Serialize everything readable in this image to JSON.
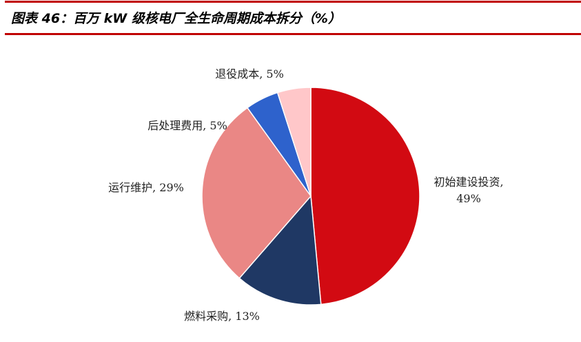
{
  "title": "图表 46：百万 kW 级核电厂全生命周期成本拆分（%）",
  "chart_data": {
    "type": "pie",
    "title": "图表 46：百万 kW 级核电厂全生命周期成本拆分（%）",
    "start": "top",
    "direction": "clockwise",
    "slices": [
      {
        "label": "初始建设投资",
        "value": 49,
        "text": [
          "初始建设投资,",
          "49%"
        ],
        "color": "#D20A12"
      },
      {
        "label": "燃料采购",
        "value": 13,
        "text": [
          "燃料采购, 13%"
        ],
        "color": "#1F3864"
      },
      {
        "label": "运行维护",
        "value": 29,
        "text": [
          "运行维护, 29%"
        ],
        "color": "#EA8785"
      },
      {
        "label": "后处理费用",
        "value": 5,
        "text": [
          "后处理费用, 5%"
        ],
        "color": "#2E62CC"
      },
      {
        "label": "退役成本",
        "value": 5,
        "text": [
          "退役成本, 5%"
        ],
        "color": "#FFC7C9"
      }
    ]
  }
}
